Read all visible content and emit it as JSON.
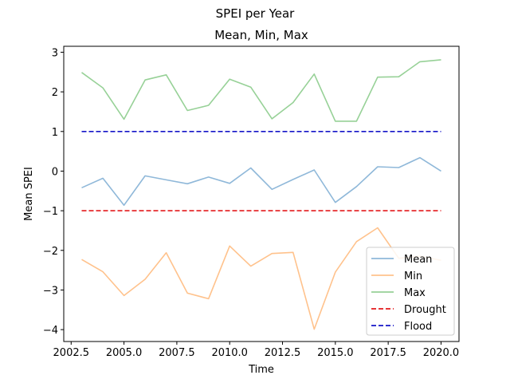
{
  "chart_data": {
    "type": "line",
    "suptitle": "SPEI per Year",
    "title": "Mean, Min, Max",
    "xlabel": "Time",
    "ylabel": "Mean SPEI",
    "xlim": [
      2002.15,
      2020.85
    ],
    "ylim": [
      -4.3,
      3.15
    ],
    "x_ticks": [
      2002.5,
      2005.0,
      2007.5,
      2010.0,
      2012.5,
      2015.0,
      2017.5,
      2020.0
    ],
    "x_tick_labels": [
      "2002.5",
      "2005.0",
      "2007.5",
      "2010.0",
      "2012.5",
      "2015.0",
      "2017.5",
      "2020.0"
    ],
    "y_ticks": [
      -4,
      -3,
      -2,
      -1,
      0,
      1,
      2,
      3
    ],
    "y_tick_labels": [
      "−4",
      "−3",
      "−2",
      "−1",
      "0",
      "1",
      "2",
      "3"
    ],
    "x": [
      2003,
      2004,
      2005,
      2006,
      2007,
      2008,
      2009,
      2010,
      2011,
      2012,
      2013,
      2014,
      2015,
      2016,
      2017,
      2018,
      2019,
      2020
    ],
    "series": [
      {
        "name": "Mean",
        "color": "#8fb8d9",
        "style": "solid",
        "values": [
          -0.42,
          -0.18,
          -0.86,
          -0.12,
          -0.22,
          -0.32,
          -0.15,
          -0.31,
          0.08,
          -0.46,
          -0.21,
          0.03,
          -0.79,
          -0.39,
          0.11,
          0.09,
          0.34,
          0.0
        ]
      },
      {
        "name": "Min",
        "color": "#ffc28c",
        "style": "solid",
        "values": [
          -2.23,
          -2.54,
          -3.14,
          -2.73,
          -2.06,
          -3.08,
          -3.22,
          -1.89,
          -2.4,
          -2.08,
          -2.05,
          -3.99,
          -2.55,
          -1.78,
          -1.43,
          -2.2,
          -2.15,
          -2.25
        ]
      },
      {
        "name": "Max",
        "color": "#97d197",
        "style": "solid",
        "values": [
          2.49,
          2.1,
          1.31,
          2.3,
          2.43,
          1.53,
          1.66,
          2.32,
          2.12,
          1.32,
          1.73,
          2.45,
          1.26,
          1.26,
          2.37,
          2.38,
          2.76,
          2.81
        ]
      },
      {
        "name": "Drought",
        "color": "#e41a1c",
        "style": "dashed",
        "values": [
          -1,
          -1,
          -1,
          -1,
          -1,
          -1,
          -1,
          -1,
          -1,
          -1,
          -1,
          -1,
          -1,
          -1,
          -1,
          -1,
          -1,
          -1
        ]
      },
      {
        "name": "Flood",
        "color": "#1515c8",
        "style": "dashed",
        "values": [
          1,
          1,
          1,
          1,
          1,
          1,
          1,
          1,
          1,
          1,
          1,
          1,
          1,
          1,
          1,
          1,
          1,
          1
        ]
      }
    ],
    "grid": false,
    "legend_position": "lower-right"
  }
}
